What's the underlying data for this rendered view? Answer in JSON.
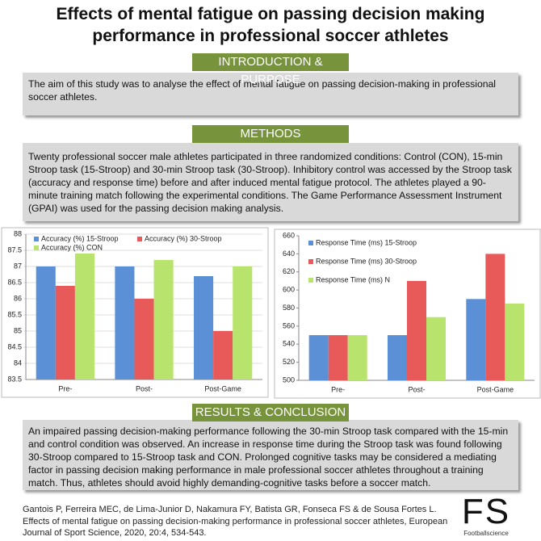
{
  "header": {
    "title": "Effects of mental fatigue on passing decision making performance in professional soccer athletes"
  },
  "sections": [
    {
      "heading": "INTRODUCTION & PURPOSE",
      "body": "The aim of this study was to analyse the effect of mental fatigue on passing decision-making in professional soccer athletes."
    },
    {
      "heading": "METHODS",
      "body": "Twenty professional soccer male athletes participated in three randomized conditions: Control (CON), 15-min Stroop task (15-Stroop) and 30-min Stroop task (30-Stroop). Inhibitory control was accessed by the Stroop task (accuracy and response time) before and after induced mental fatigue protocol. The athletes played a 90-minute training match following the experimental conditions. The Game Performance Assessment Instrument (GPAI) was used for the passing decision making analysis."
    },
    {
      "heading": "RESULTS & CONCLUSION",
      "body": "An impaired passing decision-making performance following the 30-min Stroop task compared with the 15-min and control condition was observed. An increase in response time during the Stroop task was found following 30-Stroop compared to 15-Stroop task and CON. Prolonged cognitive tasks may be considered a mediating factor in passing decision making performance in male professional soccer athletes throughout a training match. Thus, athletes should avoid highly demanding-cognitive tasks before a soccer match."
    }
  ],
  "chart_data": [
    {
      "type": "bar",
      "categories": [
        "Pre-",
        "Post-",
        "Post-Game"
      ],
      "series": [
        {
          "name": "Accuracy (%) 15-Stroop",
          "color": "#5b8fd6",
          "values": [
            87,
            87,
            86.7
          ]
        },
        {
          "name": "Accuracy (%) 30-Stroop",
          "color": "#e8595a",
          "values": [
            86.4,
            86,
            85
          ]
        },
        {
          "name": "Accuracy (%) CON",
          "color": "#b8e46e",
          "values": [
            87.4,
            87.2,
            87
          ]
        }
      ],
      "ylim": [
        83.5,
        88
      ],
      "yticks": [
        83.5,
        84,
        84.5,
        85,
        85.5,
        86,
        86.5,
        87,
        87.5,
        88
      ],
      "grid": true,
      "legend": "top"
    },
    {
      "type": "bar",
      "categories": [
        "Pre-",
        "Post-",
        "Post-Game"
      ],
      "series": [
        {
          "name": "Response Time (ms) 15-Stroop",
          "color": "#5b8fd6",
          "values": [
            550,
            550,
            590
          ]
        },
        {
          "name": "Response Time (ms) 30-Stroop",
          "color": "#e8595a",
          "values": [
            550,
            610,
            640
          ]
        },
        {
          "name": "Response Time (ms) N",
          "color": "#b8e46e",
          "values": [
            550,
            570,
            585
          ]
        }
      ],
      "ylim": [
        500,
        660
      ],
      "yticks": [
        500,
        520,
        540,
        560,
        580,
        600,
        620,
        640,
        660
      ],
      "grid": false,
      "legend": "upper left"
    }
  ],
  "citation": "Gantois P, Ferreira MEC, de Lima-Junior D, Nakamura FY, Batista GR, Fonseca FS & de Sousa Fortes L. Effects of mental fatigue on passing decision-making performance in professional soccer athletes, European Journal of Sport Science, 2020, 20:4, 534-543.",
  "logo": {
    "mark": "FS",
    "text": "Footballscience"
  }
}
